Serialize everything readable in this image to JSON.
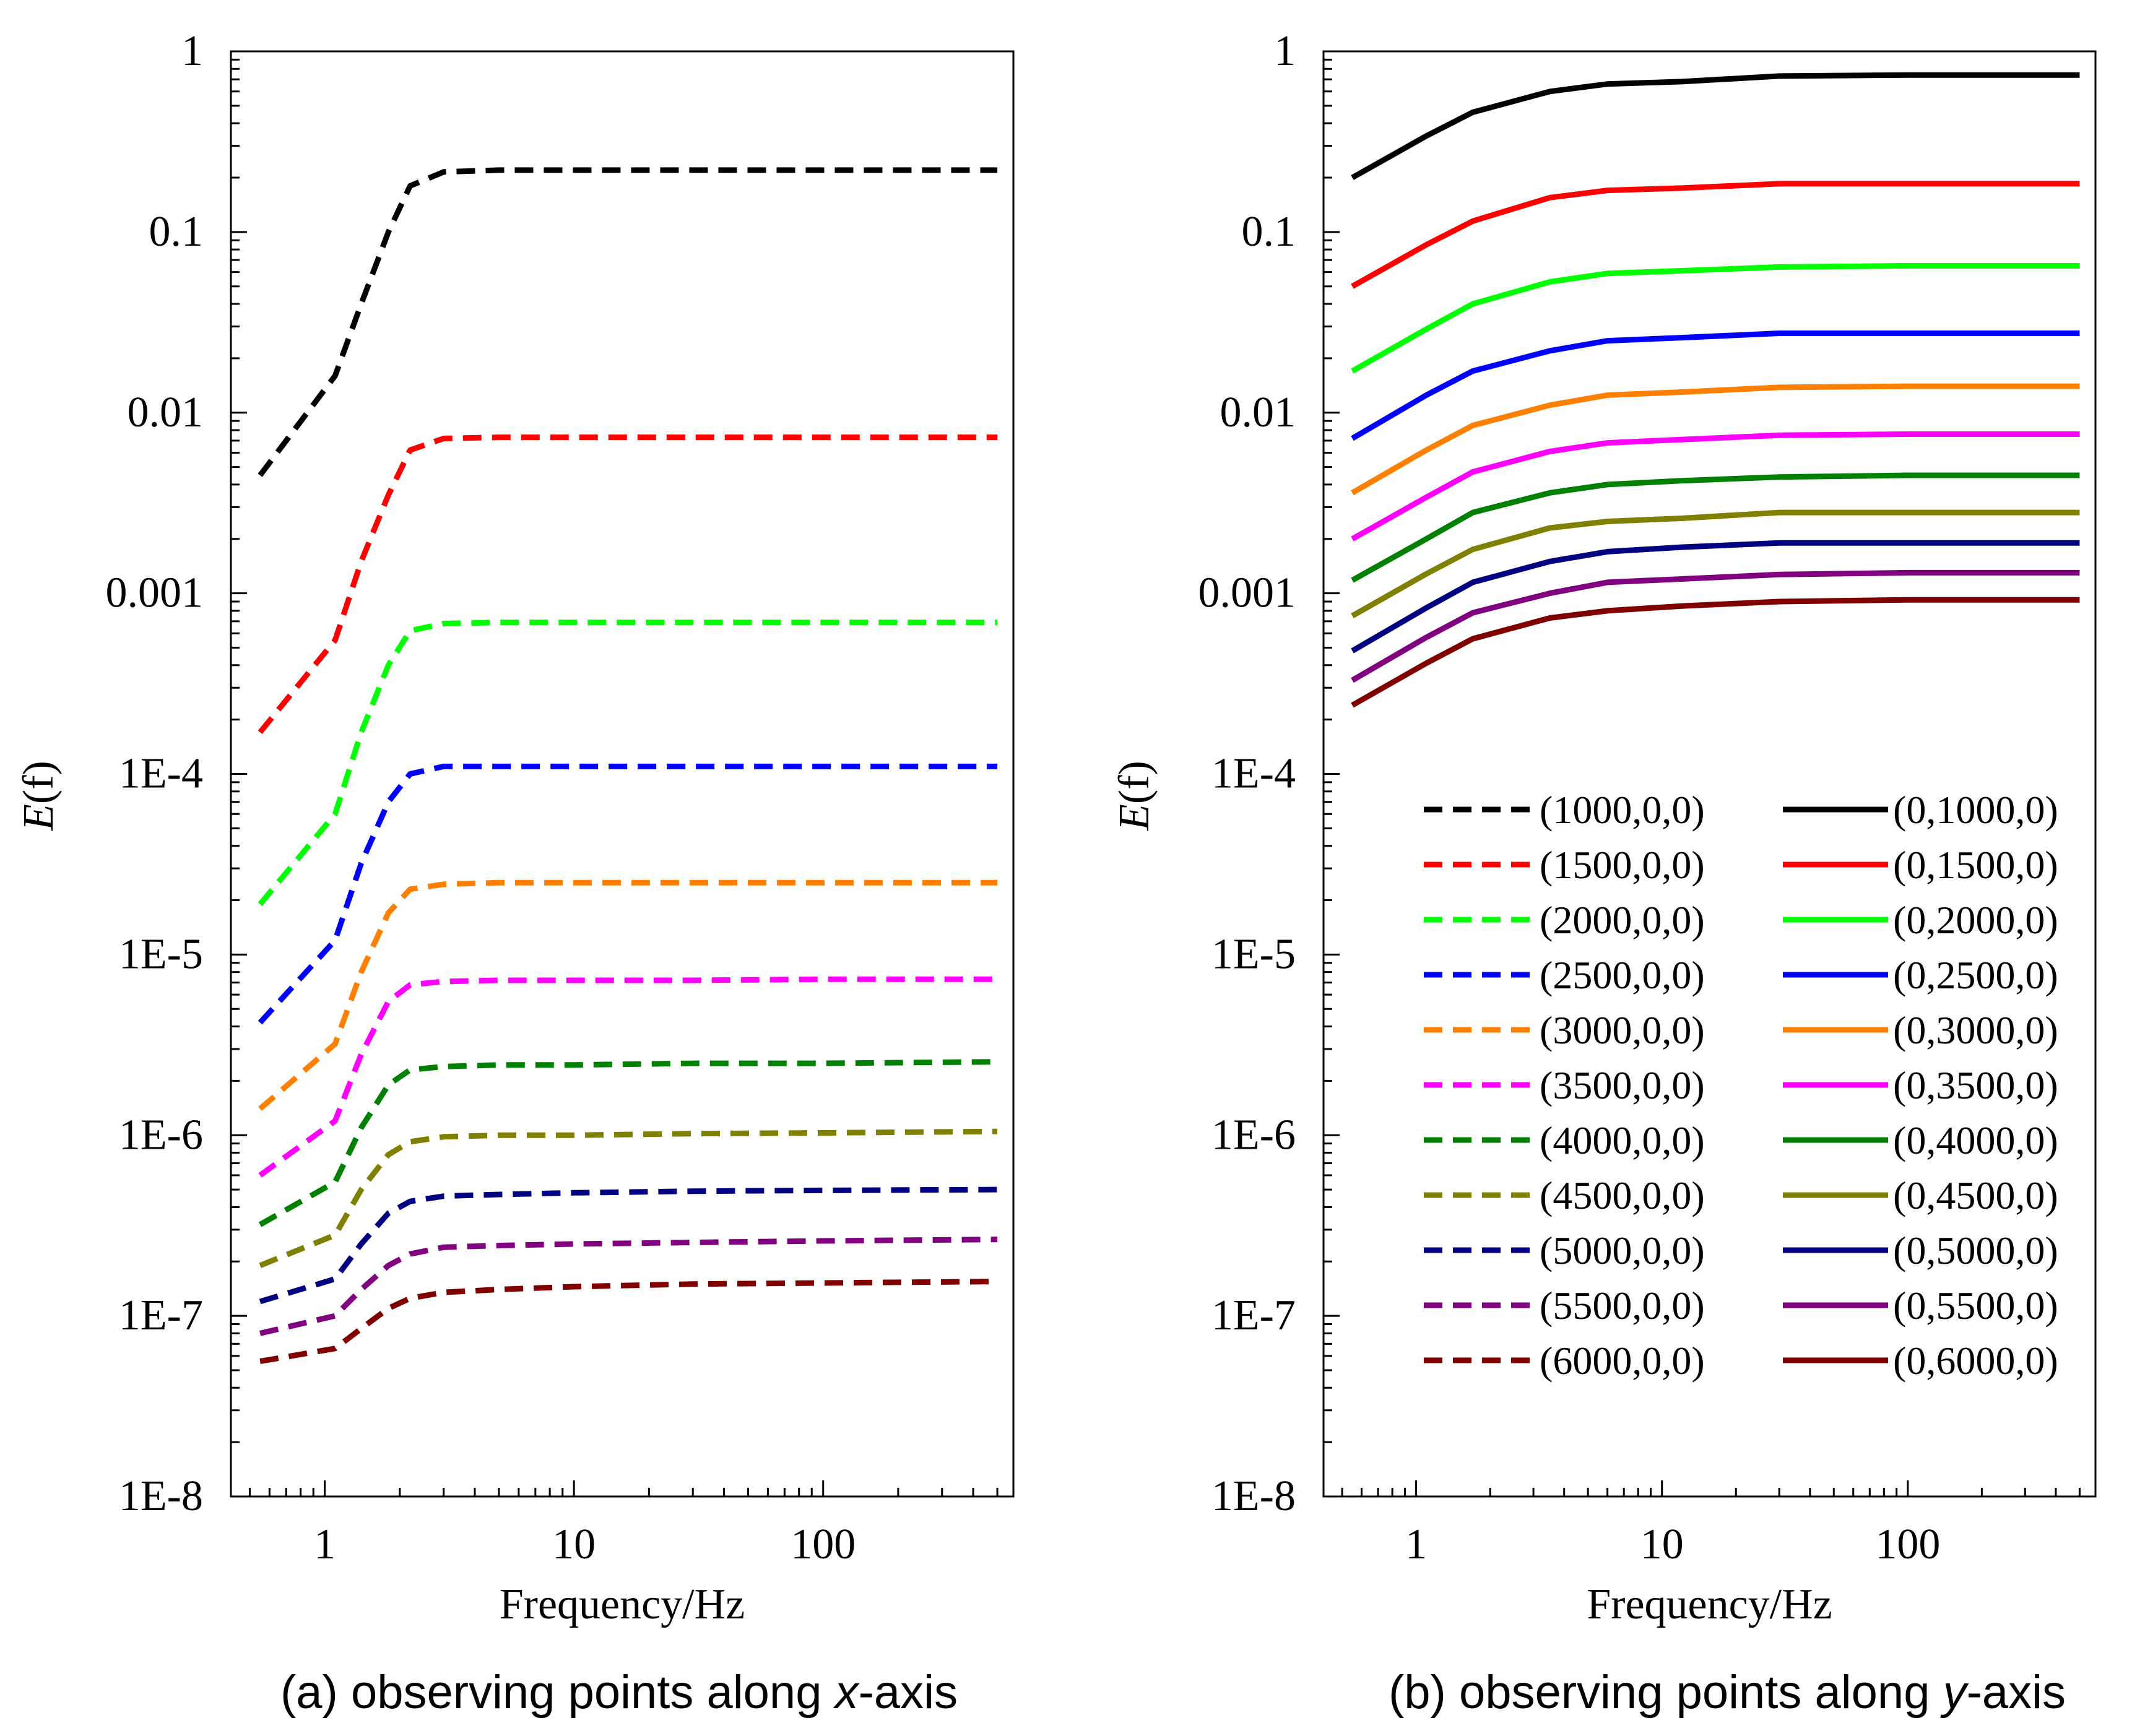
{
  "chart_data": [
    {
      "type": "line",
      "panel": "a",
      "caption_prefix": "(a) observing points along ",
      "caption_axis": "x",
      "caption_suffix": "-axis",
      "xlabel": "Frequency/Hz",
      "ylabel_italic": "E",
      "ylabel_rest": "(f)",
      "xscale": "log",
      "yscale": "log",
      "xlim": [
        0.42,
        580
      ],
      "ylim": [
        1e-08,
        1
      ],
      "x_tick_labels": [
        "1",
        "10",
        "100"
      ],
      "y_tick_labels": [
        "1E-8",
        "1E-7",
        "1E-6",
        "1E-5",
        "1E-4",
        "0.001",
        "0.01",
        "0.1",
        "1"
      ],
      "line_style": "dashed",
      "x": [
        0.55,
        1.1,
        1.4,
        1.8,
        2.2,
        3,
        5,
        10,
        30,
        100,
        500
      ],
      "series": [
        {
          "name": "(1000,0,0)",
          "color": "#000000",
          "values": [
            0.0045,
            0.016,
            0.04,
            0.1,
            0.18,
            0.215,
            0.22,
            0.22,
            0.22,
            0.22,
            0.22
          ]
        },
        {
          "name": "(1500,0,0)",
          "color": "#ff0000",
          "values": [
            0.00017,
            0.00055,
            0.0015,
            0.0035,
            0.0062,
            0.0072,
            0.0073,
            0.0073,
            0.0073,
            0.0073,
            0.0073
          ]
        },
        {
          "name": "(2000,0,0)",
          "color": "#00ff00",
          "values": [
            1.9e-05,
            6e-05,
            0.00017,
            0.0004,
            0.00062,
            0.00068,
            0.00069,
            0.00069,
            0.00069,
            0.00069,
            0.00069
          ]
        },
        {
          "name": "(2500,0,0)",
          "color": "#0000ff",
          "values": [
            4.2e-06,
            1.2e-05,
            3.2e-05,
            7e-05,
            0.0001,
            0.00011,
            0.00011,
            0.00011,
            0.00011,
            0.00011,
            0.00011
          ]
        },
        {
          "name": "(3000,0,0)",
          "color": "#ff8000",
          "values": [
            1.4e-06,
            3.2e-06,
            8e-06,
            1.7e-05,
            2.3e-05,
            2.45e-05,
            2.5e-05,
            2.5e-05,
            2.5e-05,
            2.5e-05,
            2.5e-05
          ]
        },
        {
          "name": "(3500,0,0)",
          "color": "#ff00ff",
          "values": [
            6e-07,
            1.2e-06,
            2.8e-06,
            5.5e-06,
            6.8e-06,
            7.1e-06,
            7.2e-06,
            7.2e-06,
            7.2e-06,
            7.3e-06,
            7.3e-06
          ]
        },
        {
          "name": "(4000,0,0)",
          "color": "#008000",
          "values": [
            3.2e-07,
            5.5e-07,
            1.1e-06,
            1.9e-06,
            2.3e-06,
            2.4e-06,
            2.45e-06,
            2.45e-06,
            2.5e-06,
            2.5e-06,
            2.55e-06
          ]
        },
        {
          "name": "(4500,0,0)",
          "color": "#808000",
          "values": [
            1.9e-07,
            2.8e-07,
            5e-07,
            7.8e-07,
            9.2e-07,
            9.8e-07,
            1e-06,
            1e-06,
            1.02e-06,
            1.03e-06,
            1.05e-06
          ]
        },
        {
          "name": "(5000,0,0)",
          "color": "#000080",
          "values": [
            1.2e-07,
            1.6e-07,
            2.5e-07,
            3.7e-07,
            4.3e-07,
            4.6e-07,
            4.7e-07,
            4.8e-07,
            4.9e-07,
            4.95e-07,
            5e-07
          ]
        },
        {
          "name": "(5500,0,0)",
          "color": "#800080",
          "values": [
            8e-08,
            1e-07,
            1.4e-07,
            1.9e-07,
            2.2e-07,
            2.4e-07,
            2.45e-07,
            2.5e-07,
            2.55e-07,
            2.6e-07,
            2.65e-07
          ]
        },
        {
          "name": "(6000,0,0)",
          "color": "#800000",
          "values": [
            5.6e-08,
            6.6e-08,
            8.5e-08,
            1.1e-07,
            1.25e-07,
            1.35e-07,
            1.4e-07,
            1.45e-07,
            1.5e-07,
            1.52e-07,
            1.55e-07
          ]
        }
      ]
    },
    {
      "type": "line",
      "panel": "b",
      "caption_prefix": "(b) observing points along ",
      "caption_axis": "y",
      "caption_suffix": "-axis",
      "xlabel": "Frequency/Hz",
      "ylabel_italic": "E",
      "ylabel_rest": "(f)",
      "xscale": "log",
      "yscale": "log",
      "xlim": [
        0.42,
        580
      ],
      "ylim": [
        1e-08,
        1
      ],
      "x_tick_labels": [
        "1",
        "10",
        "100"
      ],
      "y_tick_labels": [
        "1E-8",
        "1E-7",
        "1E-6",
        "1E-5",
        "1E-4",
        "0.001",
        "0.01",
        "0.1",
        "1"
      ],
      "line_style": "solid",
      "x": [
        0.55,
        1.1,
        1.7,
        3.5,
        6,
        12,
        30,
        100,
        500
      ],
      "series": [
        {
          "name": "(0,1000,0)",
          "color": "#000000",
          "values": [
            0.2,
            0.34,
            0.46,
            0.6,
            0.66,
            0.68,
            0.73,
            0.74,
            0.74
          ]
        },
        {
          "name": "(0,1500,0)",
          "color": "#ff0000",
          "values": [
            0.05,
            0.085,
            0.115,
            0.155,
            0.17,
            0.175,
            0.185,
            0.185,
            0.185
          ]
        },
        {
          "name": "(0,2000,0)",
          "color": "#00ff00",
          "values": [
            0.017,
            0.029,
            0.04,
            0.053,
            0.059,
            0.061,
            0.064,
            0.065,
            0.065
          ]
        },
        {
          "name": "(0,2500,0)",
          "color": "#0000ff",
          "values": [
            0.0072,
            0.0125,
            0.017,
            0.022,
            0.025,
            0.026,
            0.0275,
            0.0275,
            0.0275
          ]
        },
        {
          "name": "(0,3000,0)",
          "color": "#ff8000",
          "values": [
            0.0036,
            0.0062,
            0.0085,
            0.011,
            0.0125,
            0.013,
            0.0138,
            0.014,
            0.014
          ]
        },
        {
          "name": "(0,3500,0)",
          "color": "#ff00ff",
          "values": [
            0.002,
            0.0034,
            0.0047,
            0.0061,
            0.0068,
            0.0071,
            0.0075,
            0.0076,
            0.0076
          ]
        },
        {
          "name": "(0,4000,0)",
          "color": "#008000",
          "values": [
            0.00118,
            0.002,
            0.0028,
            0.0036,
            0.004,
            0.0042,
            0.0044,
            0.0045,
            0.0045
          ]
        },
        {
          "name": "(0,4500,0)",
          "color": "#808000",
          "values": [
            0.00075,
            0.00128,
            0.00175,
            0.0023,
            0.0025,
            0.0026,
            0.0028,
            0.0028,
            0.0028
          ]
        },
        {
          "name": "(0,5000,0)",
          "color": "#000080",
          "values": [
            0.00048,
            0.00083,
            0.00115,
            0.0015,
            0.0017,
            0.0018,
            0.0019,
            0.0019,
            0.0019
          ]
        },
        {
          "name": "(0,5500,0)",
          "color": "#800080",
          "values": [
            0.00033,
            0.00057,
            0.00078,
            0.001,
            0.00115,
            0.0012,
            0.00127,
            0.0013,
            0.0013
          ]
        },
        {
          "name": "(0,6000,0)",
          "color": "#800000",
          "values": [
            0.00024,
            0.00041,
            0.00056,
            0.00073,
            0.0008,
            0.00085,
            0.0009,
            0.00092,
            0.00092
          ]
        }
      ]
    }
  ]
}
